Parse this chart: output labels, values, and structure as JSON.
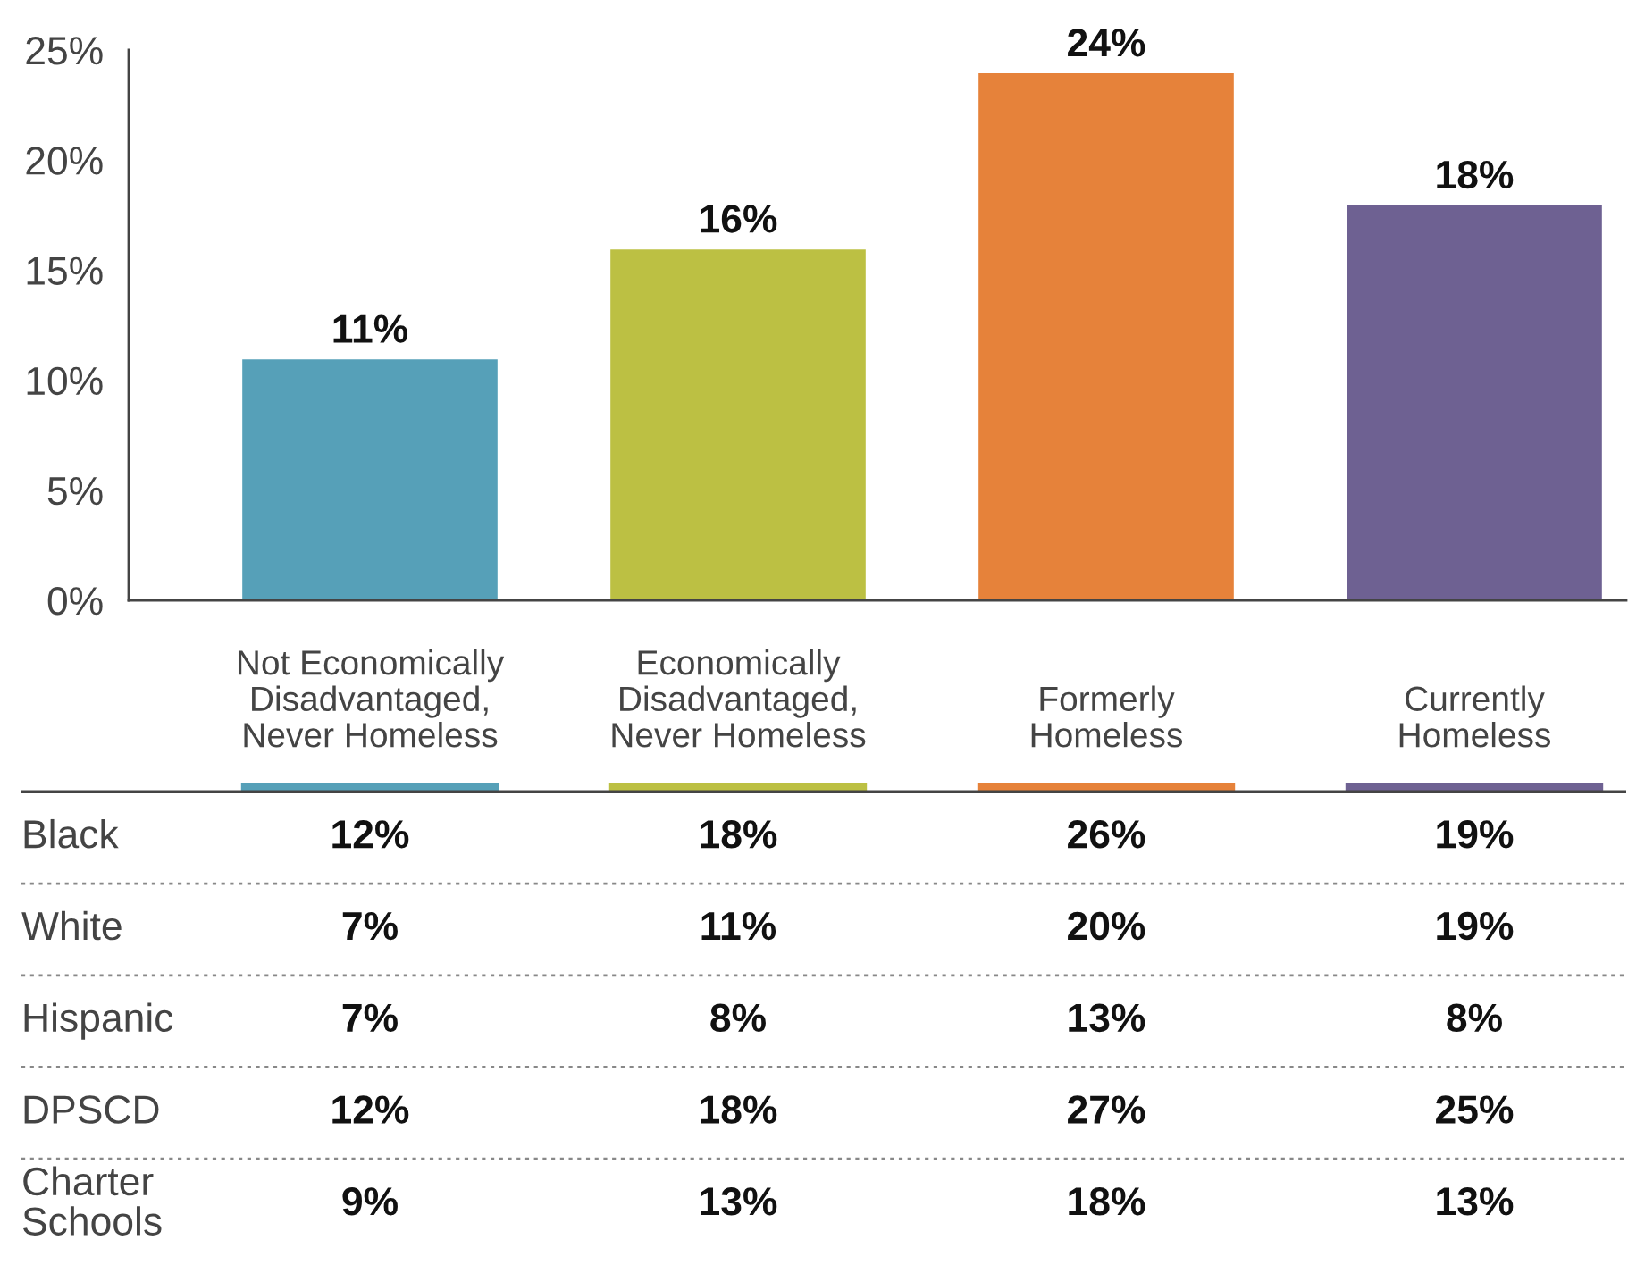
{
  "chart_data": [
    {
      "type": "bar",
      "categories": [
        "Not Economically Disadvantaged, Never Homeless",
        "Economically Disadvantaged, Never Homeless",
        "Formerly Homeless",
        "Currently Homeless"
      ],
      "values": [
        11,
        16,
        24,
        18
      ],
      "colors": [
        "#56a0b8",
        "#bcc043",
        "#e6823a",
        "#6e6192"
      ],
      "value_labels": [
        "11%",
        "16%",
        "24%",
        "18%"
      ],
      "ylim": [
        0,
        25
      ],
      "yticks": [
        {
          "value": 0,
          "label": "0%"
        },
        {
          "value": 5,
          "label": "5%"
        },
        {
          "value": 10,
          "label": "10%"
        },
        {
          "value": 15,
          "label": "15%"
        },
        {
          "value": 20,
          "label": "20%"
        },
        {
          "value": 25,
          "label": "25%"
        }
      ],
      "grid": false,
      "legend": false
    },
    {
      "type": "other",
      "categories": [
        null,
        null,
        null,
        null
      ],
      "y_categories": [
        "Black",
        "White",
        "Hispanic",
        "DPSCD",
        "Charter Schools"
      ],
      "colors": [
        "#56a0b8",
        "#bcc043",
        "#e6823a",
        "#6e6192"
      ],
      "cell_labels": [
        [
          "12%",
          "18%",
          "26%",
          "19%"
        ],
        [
          "7%",
          "11%",
          "20%",
          "19%"
        ],
        [
          "7%",
          "8%",
          "13%",
          "8%"
        ],
        [
          "12%",
          "18%",
          "27%",
          "25%"
        ],
        [
          "9%",
          "13%",
          "18%",
          "13%"
        ]
      ]
    }
  ]
}
